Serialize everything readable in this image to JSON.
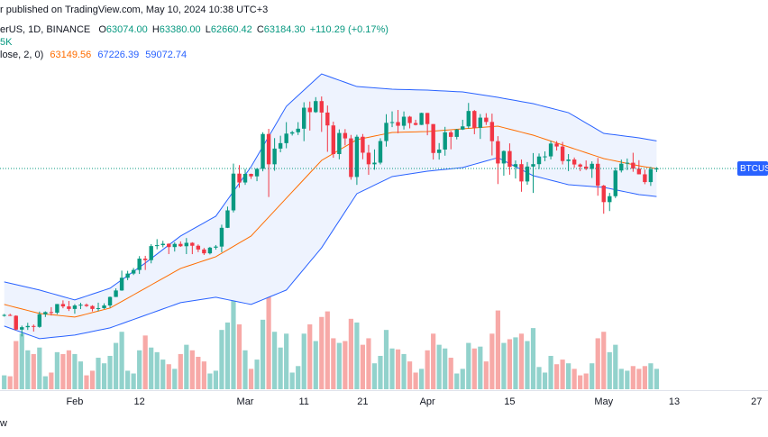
{
  "header": {
    "published": "r published on TradingView.com, May 10, 2024 10:38 UTC+3",
    "symbol": "erUS, 1D, BINANCE",
    "ohlc": [
      {
        "key": "O",
        "value": "63074.00"
      },
      {
        "key": "H",
        "value": "63380.00"
      },
      {
        "key": "L",
        "value": "62660.42"
      },
      {
        "key": "C",
        "value": "63184.30"
      }
    ],
    "change": "+110.29 (+0.17%)",
    "volume": "5K",
    "indicator": "lose, 2, 0)",
    "logo": "w"
  },
  "chart_data": {
    "type": "candlestick",
    "categories": [
      null,
      null,
      null,
      null,
      null,
      null,
      null,
      null,
      null,
      null,
      null,
      null,
      "Feb",
      null,
      null,
      null,
      null,
      null,
      null,
      null,
      null,
      null,
      null,
      "12",
      null,
      null,
      null,
      null,
      null,
      null,
      null,
      null,
      null,
      null,
      null,
      null,
      null,
      null,
      null,
      null,
      null,
      "Mar",
      null,
      null,
      null,
      null,
      null,
      null,
      null,
      null,
      null,
      "11",
      null,
      null,
      null,
      null,
      null,
      null,
      null,
      null,
      null,
      "21",
      null,
      null,
      null,
      null,
      null,
      null,
      null,
      null,
      null,
      null,
      "Apr",
      null,
      null,
      null,
      null,
      null,
      null,
      null,
      null,
      null,
      null,
      null,
      null,
      null,
      "15",
      null,
      null,
      null,
      null,
      null,
      null,
      null,
      null,
      null,
      null,
      null,
      null,
      null,
      null,
      null,
      "May",
      null,
      null,
      null,
      null,
      null,
      null,
      null,
      null,
      null,
      null,
      null,
      "13",
      null,
      null,
      null,
      null,
      null,
      null,
      null,
      null,
      null,
      null,
      null,
      null,
      null,
      "27",
      null
    ],
    "open": [
      41600,
      41700,
      41580,
      39550,
      39900,
      40080,
      39950,
      41800,
      42120,
      42030,
      43300,
      42950,
      42580,
      43080,
      43200,
      43010,
      42580,
      42700,
      43090,
      44340,
      45290,
      47150,
      47770,
      48300,
      49960,
      49740,
      51800,
      51940,
      52140,
      51660,
      52120,
      51780,
      52280,
      51850,
      51300,
      50740,
      51570,
      51730,
      54480,
      57040,
      62430,
      61130,
      62390,
      62030,
      63130,
      68240,
      63800,
      66100,
      66900,
      68300,
      68500,
      69020,
      72100,
      71450,
      73070,
      71390,
      69500,
      65300,
      68390,
      67600,
      61940,
      67840,
      65500,
      63800,
      64040,
      67210,
      69880,
      69990,
      69450,
      70780,
      69850,
      69580,
      71330,
      69700,
      65460,
      65960,
      68490,
      67820,
      68900,
      69360,
      71620,
      69150,
      70640,
      70010,
      67190,
      63920,
      65740,
      63430,
      63820,
      61280,
      63470,
      63820,
      64940,
      64960,
      66840,
      66410,
      64280,
      64500,
      63770,
      63460,
      63120,
      63870,
      60670,
      58250,
      59120,
      62890,
      63890,
      64030,
      63160,
      62330,
      61190,
      63074,
      null,
      null,
      null,
      null,
      null,
      null,
      null,
      null,
      null,
      null,
      null,
      null,
      null,
      null,
      null,
      null,
      null,
      null
    ],
    "high": [
      41850,
      41880,
      41650,
      40130,
      40550,
      40300,
      42200,
      42230,
      42840,
      43300,
      43840,
      43750,
      43290,
      43480,
      43380,
      43120,
      43500,
      43400,
      44400,
      45600,
      48200,
      48170,
      48590,
      50330,
      50370,
      52080,
      52820,
      52570,
      52200,
      52360,
      52490,
      52980,
      52370,
      52050,
      51530,
      51690,
      51960,
      54940,
      57590,
      63900,
      63680,
      63120,
      62430,
      63230,
      68500,
      69000,
      67640,
      67990,
      69980,
      68700,
      69980,
      72900,
      73000,
      73650,
      73750,
      72420,
      70050,
      68920,
      68960,
      68110,
      68130,
      68240,
      66650,
      65980,
      67620,
      71150,
      71560,
      71770,
      71550,
      70900,
      70330,
      71370,
      71340,
      69700,
      66910,
      69290,
      68720,
      69000,
      70330,
      72800,
      71760,
      71170,
      71290,
      71230,
      67930,
      65840,
      66870,
      64360,
      64500,
      64130,
      65450,
      65390,
      65690,
      67230,
      67200,
      67080,
      65300,
      64790,
      63920,
      64360,
      64230,
      64730,
      60780,
      59600,
      63320,
      64490,
      64650,
      65490,
      64400,
      63020,
      63420,
      63380,
      null,
      null,
      null,
      null,
      null,
      null,
      null,
      null,
      null,
      null,
      null,
      null,
      null,
      null,
      null,
      null,
      null,
      null
    ],
    "low": [
      41450,
      41550,
      39450,
      38550,
      39500,
      39260,
      39820,
      41400,
      41620,
      41800,
      42680,
      42280,
      41880,
      42560,
      42880,
      42220,
      42260,
      42570,
      42780,
      44330,
      45240,
      46800,
      47560,
      47710,
      48300,
      49270,
      51330,
      51620,
      50630,
      51000,
      51680,
      50630,
      50620,
      50920,
      50500,
      50580,
      51280,
      50900,
      54450,
      56740,
      60360,
      60780,
      61660,
      61320,
      62770,
      59000,
      62850,
      65560,
      66150,
      68020,
      68100,
      67190,
      68750,
      71340,
      68550,
      65630,
      64760,
      64530,
      66570,
      61540,
      60780,
      64540,
      62250,
      63000,
      63780,
      66390,
      69250,
      68360,
      68900,
      69070,
      69500,
      69560,
      68060,
      64500,
      64490,
      65060,
      66000,
      67450,
      68830,
      69040,
      68210,
      67520,
      69570,
      65100,
      60900,
      62130,
      62270,
      61710,
      59770,
      60800,
      59600,
      63100,
      64250,
      64520,
      65820,
      63780,
      62800,
      63290,
      62800,
      62940,
      61800,
      59190,
      56550,
      56940,
      58850,
      62600,
      62950,
      62700,
      62320,
      60880,
      60630,
      62660.42,
      null,
      null,
      null,
      null,
      null,
      null,
      null,
      null,
      null,
      null,
      null,
      null,
      null,
      null,
      null,
      null,
      null,
      null
    ],
    "close": [
      41700,
      41580,
      39550,
      39900,
      40080,
      39950,
      41800,
      42120,
      42030,
      43300,
      42950,
      42580,
      43080,
      43200,
      43010,
      42580,
      42700,
      43090,
      44340,
      45290,
      47150,
      47770,
      48300,
      49960,
      49740,
      51800,
      51940,
      52140,
      51660,
      52120,
      51780,
      52280,
      51850,
      51300,
      50740,
      51570,
      51730,
      54480,
      57040,
      62430,
      61130,
      62390,
      62030,
      63130,
      68240,
      63800,
      66100,
      66900,
      68300,
      68500,
      69020,
      72100,
      71450,
      73070,
      71390,
      69500,
      65300,
      68390,
      67600,
      61940,
      67840,
      65500,
      63800,
      64040,
      67210,
      69880,
      69990,
      69450,
      70780,
      69850,
      69580,
      71330,
      69700,
      65460,
      65960,
      68490,
      67820,
      68900,
      69360,
      71620,
      69150,
      70640,
      70010,
      67190,
      63920,
      65740,
      63430,
      63820,
      61280,
      63470,
      63820,
      64940,
      64960,
      66840,
      66410,
      64280,
      64500,
      63770,
      63460,
      63120,
      63870,
      60670,
      58250,
      59120,
      62890,
      63890,
      64030,
      63160,
      62330,
      61190,
      63074,
      63184.3,
      null,
      null,
      null,
      null,
      null,
      null,
      null,
      null,
      null,
      null,
      null,
      null,
      null,
      null,
      null,
      null,
      null,
      null
    ],
    "up_color": "#089981",
    "down_color": "#f23645",
    "ylim": [
      30800,
      87900
    ],
    "volume": {
      "axis": "y2",
      "up_color": "#92d2cc",
      "down_color": "#f7a9a7",
      "values": [
        15000,
        14000,
        52000,
        60000,
        42000,
        38000,
        45000,
        14000,
        18000,
        40000,
        38000,
        42000,
        38000,
        30000,
        15000,
        20000,
        34000,
        28000,
        36000,
        50000,
        62000,
        20000,
        17000,
        42000,
        58000,
        45000,
        40000,
        32000,
        27000,
        22000,
        38000,
        48000,
        42000,
        35000,
        30000,
        17000,
        20000,
        64000,
        72000,
        98000,
        70000,
        42000,
        22000,
        32000,
        75000,
        105000,
        62000,
        45000,
        60000,
        18000,
        25000,
        60000,
        70000,
        52000,
        78000,
        84000,
        55000,
        50000,
        52000,
        76000,
        72000,
        48000,
        55000,
        28000,
        36000,
        64000,
        44000,
        43000,
        38000,
        30000,
        18000,
        22000,
        42000,
        60000,
        48000,
        44000,
        34000,
        17000,
        22000,
        50000,
        44000,
        46000,
        30000,
        60000,
        85000,
        50000,
        54000,
        56000,
        60000,
        52000,
        66000,
        24000,
        18000,
        36000,
        27000,
        32000,
        28000,
        22000,
        15000,
        17000,
        28000,
        55000,
        62000,
        40000,
        48000,
        22000,
        20000,
        25000,
        22000,
        25000,
        28000,
        22000,
        null,
        null,
        null,
        null,
        null,
        null,
        null,
        null,
        null,
        null,
        null,
        null,
        null,
        null,
        null,
        null,
        null,
        null
      ]
    },
    "y2lim": [
      0,
      420000
    ],
    "band_fill": "#eef3fe",
    "bands": [
      {
        "color": "#ff6d00",
        "values": [
          43237,
          43017,
          42797,
          42576,
          42356,
          42136,
          41916,
          41828,
          41740,
          41652,
          41564,
          41476,
          41388,
          41608,
          41828,
          42049,
          42269,
          42489,
          42709,
          43193,
          43678,
          44162,
          44646,
          45131,
          45615,
          46099,
          46584,
          47068,
          47552,
          48037,
          48521,
          48807,
          49093,
          49380,
          49666,
          49952,
          50238,
          50745,
          51251,
          51758,
          52264,
          52771,
          53277,
          54202,
          55126,
          56051,
          56976,
          57900,
          58825,
          59750,
          60674,
          61599,
          62524,
          63448,
          64373,
          64880,
          65386,
          65893,
          66399,
          66906,
          67412,
          67588,
          67764,
          67940,
          68116,
          68292,
          68468,
          68490,
          68512,
          68534,
          68556,
          68578,
          68600,
          68666,
          68732,
          68799,
          68865,
          68931,
          68997,
          69063,
          69129,
          69195,
          69261,
          69327,
          69393,
          69173,
          68953,
          68733,
          68512,
          68292,
          68072,
          67786,
          67500,
          67214,
          66927,
          66641,
          66355,
          66069,
          65783,
          65496,
          65210,
          64924,
          64638,
          64462,
          64285,
          64109,
          63933,
          63756,
          63580,
          63437,
          63293,
          63149.56,
          null,
          null,
          null,
          null,
          null,
          null,
          null,
          null,
          null,
          null,
          null,
          null,
          null,
          null,
          null,
          null,
          null,
          null
        ]
      },
      {
        "color": "#2962ff",
        "values": [
          46540,
          46342,
          46144,
          45945,
          45747,
          45549,
          45351,
          45109,
          44867,
          44624,
          44382,
          44140,
          43898,
          44184,
          44470,
          44756,
          45043,
          45329,
          45615,
          46232,
          46848,
          47465,
          48081,
          48698,
          49314,
          49975,
          50635,
          51296,
          51956,
          52617,
          53277,
          53761,
          54246,
          54730,
          55214,
          55699,
          56183,
          57394,
          58605,
          59816,
          61026,
          62237,
          63448,
          64923,
          66398,
          67874,
          69349,
          70824,
          72299,
          73092,
          73884,
          74677,
          75470,
          76262,
          77055,
          76747,
          76438,
          76130,
          75822,
          75513,
          75205,
          75139,
          75073,
          75007,
          74941,
          74875,
          74809,
          74787,
          74765,
          74743,
          74721,
          74699,
          74677,
          74633,
          74589,
          74545,
          74501,
          74457,
          74413,
          74281,
          74149,
          74016,
          73884,
          73752,
          73620,
          73466,
          73312,
          73157,
          73003,
          72849,
          72695,
          72475,
          72255,
          72034,
          71814,
          71594,
          71374,
          70868,
          70361,
          69855,
          69349,
          68842,
          68336,
          68226,
          68116,
          68006,
          67896,
          67786,
          67676,
          67526,
          67376,
          67226.39,
          null,
          null,
          null,
          null,
          null,
          null,
          null,
          null,
          null,
          null,
          null,
          null,
          null,
          null,
          null,
          null,
          null,
          null
        ]
      },
      {
        "color": "#2962ff",
        "values": [
          40067,
          39759,
          39451,
          39142,
          38834,
          38526,
          38218,
          38306,
          38394,
          38482,
          38570,
          38658,
          38746,
          38922,
          39098,
          39275,
          39451,
          39627,
          39803,
          40111,
          40419,
          40728,
          41036,
          41344,
          41652,
          41960,
          42269,
          42577,
          42885,
          43194,
          43502,
          43634,
          43766,
          43898,
          44030,
          44162,
          44294,
          44118,
          43942,
          43766,
          43590,
          43414,
          43238,
          43590,
          43943,
          44295,
          44647,
          45000,
          45352,
          46387,
          47421,
          48456,
          49491,
          50525,
          51560,
          52881,
          54202,
          55523,
          56844,
          58165,
          59486,
          59904,
          60323,
          60741,
          61159,
          61578,
          61996,
          62128,
          62260,
          62392,
          62524,
          62656,
          62788,
          62876,
          62964,
          63053,
          63141,
          63229,
          63317,
          63559,
          63801,
          64044,
          64286,
          64528,
          64770,
          64330,
          63889,
          63449,
          63009,
          62568,
          62128,
          61908,
          61688,
          61468,
          61247,
          61027,
          60807,
          60741,
          60675,
          60609,
          60543,
          60477,
          60411,
          60235,
          60059,
          59882,
          59706,
          59530,
          59354,
          59260,
          59166,
          59072.74,
          null,
          null,
          null,
          null,
          null,
          null,
          null,
          null,
          null,
          null,
          null,
          null,
          null,
          null,
          null,
          null,
          null,
          null
        ]
      }
    ],
    "price_label": "BTCUS",
    "price_label_color": "#2962ff"
  }
}
